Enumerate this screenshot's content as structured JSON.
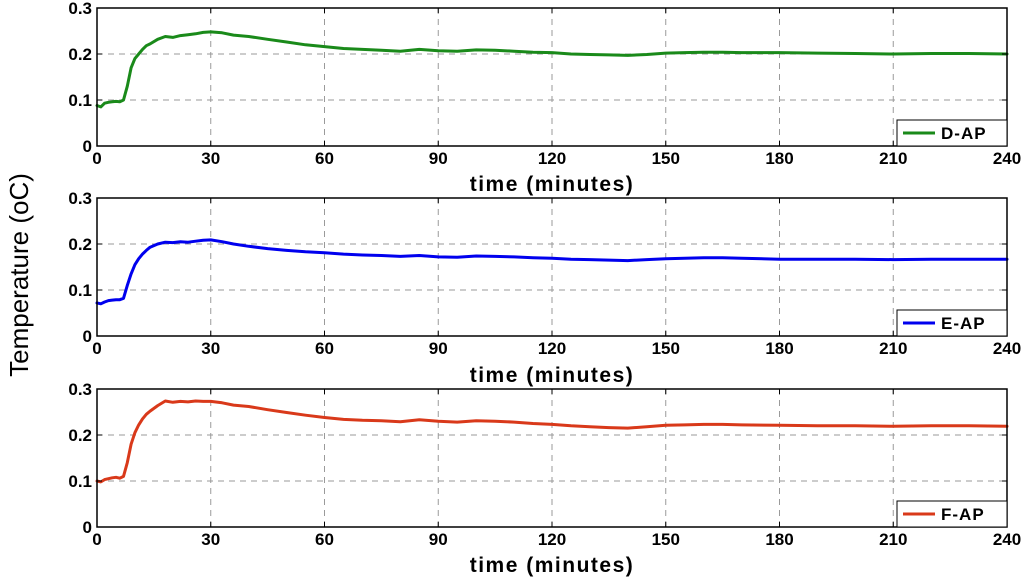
{
  "ylabel": "Temperature (oC)",
  "chart_data": [
    {
      "type": "line",
      "xlabel": "time (minutes)",
      "xlim": [
        0,
        240
      ],
      "ylim": [
        0,
        0.3
      ],
      "xticks": [
        0,
        30,
        60,
        90,
        120,
        150,
        180,
        210,
        240
      ],
      "xtick_labels": [
        "0",
        "30",
        "60",
        "90",
        "120",
        "150",
        "180",
        "210",
        "240"
      ],
      "yticks": [
        0,
        0.1,
        0.2,
        0.3
      ],
      "ytick_labels": [
        "0",
        "0.1",
        "0.2",
        "0.3"
      ],
      "grid": true,
      "legend_position": "bottom-right",
      "series": [
        {
          "name": "D-AP",
          "color": "#1a8a1a",
          "x": [
            0,
            1,
            2,
            3,
            4,
            5,
            6,
            7,
            8,
            9,
            10,
            11,
            12,
            13,
            14,
            16,
            18,
            20,
            22,
            24,
            26,
            28,
            30,
            33,
            36,
            40,
            45,
            50,
            55,
            60,
            65,
            70,
            75,
            80,
            85,
            90,
            95,
            100,
            105,
            110,
            115,
            120,
            125,
            130,
            135,
            140,
            145,
            150,
            155,
            160,
            165,
            170,
            180,
            190,
            200,
            210,
            220,
            230,
            240
          ],
          "y": [
            0.088,
            0.085,
            0.093,
            0.095,
            0.096,
            0.097,
            0.096,
            0.1,
            0.13,
            0.17,
            0.19,
            0.2,
            0.21,
            0.218,
            0.222,
            0.232,
            0.238,
            0.236,
            0.24,
            0.242,
            0.244,
            0.247,
            0.248,
            0.246,
            0.241,
            0.238,
            0.232,
            0.226,
            0.22,
            0.216,
            0.212,
            0.21,
            0.208,
            0.206,
            0.21,
            0.207,
            0.206,
            0.209,
            0.208,
            0.206,
            0.204,
            0.203,
            0.2,
            0.199,
            0.198,
            0.197,
            0.199,
            0.202,
            0.203,
            0.204,
            0.204,
            0.203,
            0.203,
            0.202,
            0.201,
            0.2,
            0.201,
            0.201,
            0.2
          ]
        }
      ]
    },
    {
      "type": "line",
      "xlabel": "time (minutes)",
      "xlim": [
        0,
        240
      ],
      "ylim": [
        0,
        0.3
      ],
      "xticks": [
        0,
        30,
        60,
        90,
        120,
        150,
        180,
        210,
        240
      ],
      "xtick_labels": [
        "0",
        "30",
        "60",
        "90",
        "120",
        "150",
        "180",
        "210",
        "240"
      ],
      "yticks": [
        0,
        0.1,
        0.2,
        0.3
      ],
      "ytick_labels": [
        "0",
        "0.1",
        "0.2",
        "0.3"
      ],
      "grid": true,
      "legend_position": "bottom-right",
      "series": [
        {
          "name": "E-AP",
          "color": "#0000ee",
          "x": [
            0,
            1,
            2,
            3,
            4,
            5,
            6,
            7,
            8,
            9,
            10,
            11,
            12,
            13,
            14,
            16,
            18,
            20,
            22,
            24,
            26,
            28,
            30,
            33,
            36,
            40,
            45,
            50,
            55,
            60,
            65,
            70,
            75,
            80,
            85,
            90,
            95,
            100,
            105,
            110,
            115,
            120,
            125,
            130,
            135,
            140,
            145,
            150,
            155,
            160,
            165,
            170,
            180,
            190,
            200,
            210,
            220,
            230,
            240
          ],
          "y": [
            0.072,
            0.07,
            0.074,
            0.077,
            0.078,
            0.079,
            0.079,
            0.082,
            0.11,
            0.135,
            0.155,
            0.168,
            0.178,
            0.186,
            0.193,
            0.2,
            0.204,
            0.203,
            0.205,
            0.204,
            0.206,
            0.208,
            0.209,
            0.205,
            0.2,
            0.195,
            0.19,
            0.186,
            0.183,
            0.181,
            0.178,
            0.176,
            0.175,
            0.173,
            0.175,
            0.172,
            0.171,
            0.174,
            0.173,
            0.172,
            0.17,
            0.169,
            0.167,
            0.166,
            0.165,
            0.164,
            0.166,
            0.168,
            0.169,
            0.17,
            0.17,
            0.169,
            0.167,
            0.167,
            0.167,
            0.166,
            0.167,
            0.167,
            0.167
          ]
        }
      ]
    },
    {
      "type": "line",
      "xlabel": "time (minutes)",
      "xlim": [
        0,
        240
      ],
      "ylim": [
        0,
        0.3
      ],
      "xticks": [
        0,
        30,
        60,
        90,
        120,
        150,
        180,
        210,
        240
      ],
      "xtick_labels": [
        "0",
        "30",
        "60",
        "90",
        "120",
        "150",
        "180",
        "210",
        "240"
      ],
      "yticks": [
        0,
        0.1,
        0.2,
        0.3
      ],
      "ytick_labels": [
        "0",
        "0.1",
        "0.2",
        "0.3"
      ],
      "grid": true,
      "legend_position": "bottom-right",
      "series": [
        {
          "name": "F-AP",
          "color": "#d9391a",
          "x": [
            0,
            1,
            2,
            3,
            4,
            5,
            6,
            7,
            8,
            9,
            10,
            11,
            12,
            13,
            14,
            16,
            18,
            20,
            22,
            24,
            26,
            28,
            30,
            33,
            36,
            40,
            45,
            50,
            55,
            60,
            65,
            70,
            75,
            80,
            85,
            90,
            95,
            100,
            105,
            110,
            115,
            120,
            125,
            130,
            135,
            140,
            145,
            150,
            155,
            160,
            165,
            170,
            180,
            190,
            200,
            210,
            220,
            230,
            240
          ],
          "y": [
            0.1,
            0.098,
            0.103,
            0.105,
            0.107,
            0.108,
            0.106,
            0.11,
            0.14,
            0.18,
            0.205,
            0.222,
            0.235,
            0.245,
            0.252,
            0.264,
            0.274,
            0.271,
            0.273,
            0.272,
            0.274,
            0.273,
            0.273,
            0.27,
            0.265,
            0.262,
            0.255,
            0.249,
            0.243,
            0.238,
            0.234,
            0.232,
            0.231,
            0.229,
            0.233,
            0.23,
            0.228,
            0.231,
            0.23,
            0.228,
            0.225,
            0.223,
            0.22,
            0.218,
            0.216,
            0.215,
            0.218,
            0.221,
            0.222,
            0.223,
            0.223,
            0.222,
            0.221,
            0.22,
            0.22,
            0.219,
            0.22,
            0.22,
            0.219
          ]
        }
      ]
    }
  ]
}
